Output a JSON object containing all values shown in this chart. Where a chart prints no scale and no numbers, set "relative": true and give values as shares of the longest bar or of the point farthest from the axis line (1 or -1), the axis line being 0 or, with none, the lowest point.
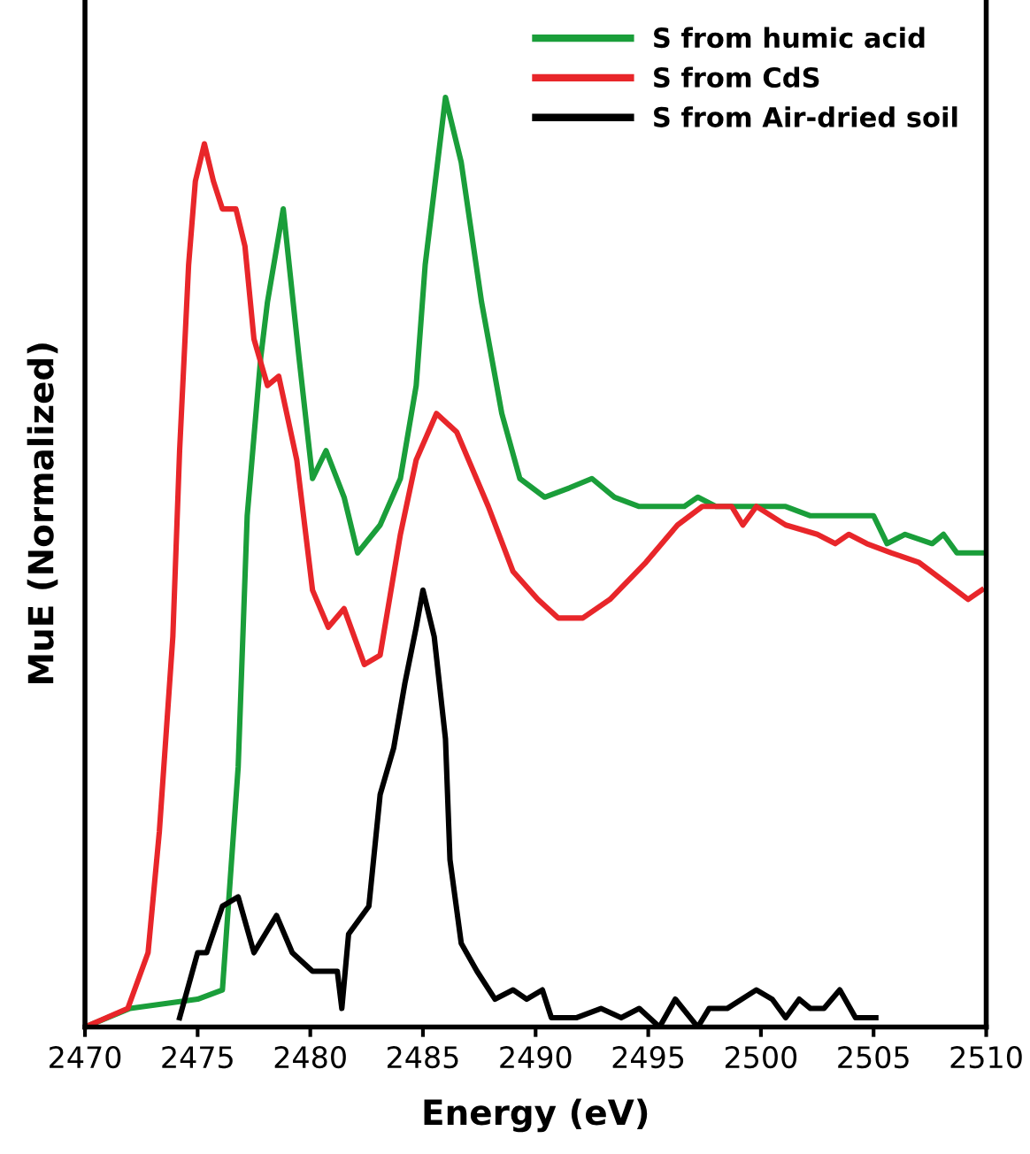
{
  "chart_data": {
    "type": "line",
    "xlabel": "Energy (eV)",
    "ylabel": "MuE (Normalized)",
    "relative": true,
    "xlim": [
      2470,
      2510
    ],
    "xticks": [
      2470,
      2475,
      2480,
      2485,
      2490,
      2495,
      2500,
      2505,
      2510
    ],
    "legend": "top right",
    "grid": false,
    "marker": "none",
    "line_style": "solid",
    "series": [
      {
        "name": "S from humic acid",
        "color": "#1a9e3a",
        "x": [
          2470.0,
          2472.0,
          2475.0,
          2476.1,
          2476.8,
          2477.2,
          2477.8,
          2478.1,
          2478.8,
          2479.5,
          2480.1,
          2480.7,
          2481.5,
          2482.1,
          2483.1,
          2484.0,
          2484.7,
          2485.1,
          2486.0,
          2486.7,
          2487.6,
          2488.5,
          2489.3,
          2490.4,
          2491.5,
          2492.5,
          2493.5,
          2494.6,
          2496.6,
          2497.2,
          2498.0,
          2499.7,
          2501.1,
          2502.2,
          2505.0,
          2505.6,
          2506.4,
          2507.6,
          2508.1,
          2508.7,
          2510.0
        ],
        "values": [
          0.0,
          0.02,
          0.03,
          0.04,
          0.28,
          0.55,
          0.72,
          0.78,
          0.88,
          0.72,
          0.59,
          0.62,
          0.57,
          0.51,
          0.54,
          0.59,
          0.69,
          0.82,
          1.0,
          0.93,
          0.78,
          0.66,
          0.59,
          0.57,
          0.58,
          0.59,
          0.57,
          0.56,
          0.56,
          0.57,
          0.56,
          0.56,
          0.56,
          0.55,
          0.55,
          0.52,
          0.53,
          0.52,
          0.53,
          0.51,
          0.51
        ]
      },
      {
        "name": "S from CdS",
        "color": "#e8262a",
        "x": [
          2470.0,
          2471.9,
          2472.8,
          2473.3,
          2473.9,
          2474.2,
          2474.6,
          2474.9,
          2475.3,
          2475.7,
          2476.1,
          2476.7,
          2477.1,
          2477.5,
          2478.1,
          2478.6,
          2479.4,
          2480.1,
          2480.8,
          2481.5,
          2482.4,
          2483.1,
          2484.0,
          2484.7,
          2485.6,
          2486.5,
          2487.9,
          2489.0,
          2490.1,
          2491.0,
          2492.1,
          2493.3,
          2494.9,
          2496.3,
          2497.4,
          2498.7,
          2499.2,
          2499.8,
          2501.1,
          2502.5,
          2503.3,
          2503.9,
          2504.7,
          2505.8,
          2507.0,
          2508.1,
          2509.2,
          2509.8
        ],
        "values": [
          0.0,
          0.02,
          0.08,
          0.21,
          0.42,
          0.62,
          0.82,
          0.91,
          0.95,
          0.91,
          0.88,
          0.88,
          0.84,
          0.74,
          0.69,
          0.7,
          0.61,
          0.47,
          0.43,
          0.45,
          0.39,
          0.4,
          0.53,
          0.61,
          0.66,
          0.64,
          0.56,
          0.49,
          0.46,
          0.44,
          0.44,
          0.46,
          0.5,
          0.54,
          0.56,
          0.56,
          0.54,
          0.56,
          0.54,
          0.53,
          0.52,
          0.53,
          0.52,
          0.51,
          0.5,
          0.48,
          0.46,
          0.47
        ]
      },
      {
        "name": "S from Air-dried soil",
        "color": "#000000",
        "x": [
          2474.2,
          2475.0,
          2475.4,
          2476.1,
          2476.8,
          2477.5,
          2478.5,
          2479.2,
          2480.1,
          2481.2,
          2481.4,
          2481.7,
          2482.6,
          2483.1,
          2483.7,
          2484.2,
          2484.7,
          2485.0,
          2485.5,
          2486.0,
          2486.2,
          2486.7,
          2487.4,
          2488.2,
          2489.0,
          2489.6,
          2490.3,
          2490.7,
          2491.8,
          2492.9,
          2493.8,
          2494.6,
          2495.5,
          2496.2,
          2497.2,
          2497.7,
          2498.5,
          2499.8,
          2500.5,
          2501.1,
          2501.7,
          2502.2,
          2502.8,
          2503.5,
          2504.2,
          2505.1
        ],
        "values": [
          0.01,
          0.08,
          0.08,
          0.13,
          0.14,
          0.08,
          0.12,
          0.08,
          0.06,
          0.06,
          0.02,
          0.1,
          0.13,
          0.25,
          0.3,
          0.37,
          0.43,
          0.47,
          0.42,
          0.31,
          0.18,
          0.09,
          0.06,
          0.03,
          0.04,
          0.03,
          0.04,
          0.01,
          0.01,
          0.02,
          0.01,
          0.02,
          0.0,
          0.03,
          0.0,
          0.02,
          0.02,
          0.04,
          0.03,
          0.01,
          0.03,
          0.02,
          0.02,
          0.04,
          0.01,
          0.01
        ]
      }
    ]
  }
}
